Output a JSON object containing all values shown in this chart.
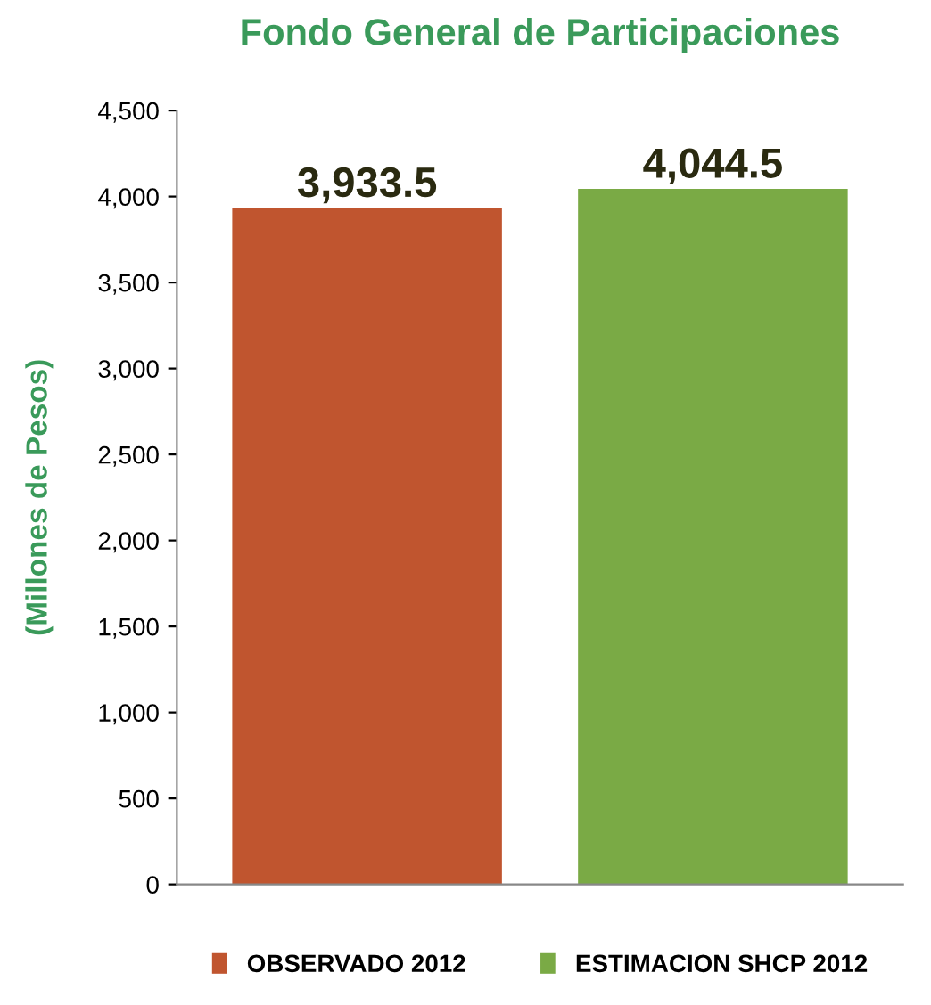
{
  "chart_data": {
    "type": "bar",
    "title": "Fondo General de Participaciones",
    "ylabel": "(Millones de Pesos)",
    "categories": [
      null,
      null
    ],
    "series": [
      {
        "name": "OBSERVADO 2012",
        "color": "#c0552f",
        "values": [
          3933.5,
          null
        ],
        "value_labels": [
          "3,933.5",
          null
        ]
      },
      {
        "name": "ESTIMACION SHCP 2012",
        "color": "#7aaa45",
        "values": [
          null,
          4044.5
        ],
        "value_labels": [
          null,
          "4,044.5"
        ]
      }
    ],
    "ylim": [
      0,
      4500
    ],
    "yticks": [
      {
        "value": 0,
        "label": "0"
      },
      {
        "value": 500,
        "label": "500"
      },
      {
        "value": 1000,
        "label": "1,000"
      },
      {
        "value": 1500,
        "label": "1,500"
      },
      {
        "value": 2000,
        "label": "2,000"
      },
      {
        "value": 2500,
        "label": "2,500"
      },
      {
        "value": 3000,
        "label": "3,000"
      },
      {
        "value": 3500,
        "label": "3,500"
      },
      {
        "value": 4000,
        "label": "4,000"
      },
      {
        "value": 4500,
        "label": "4,500"
      }
    ],
    "grid": false,
    "legend": "bottom"
  }
}
